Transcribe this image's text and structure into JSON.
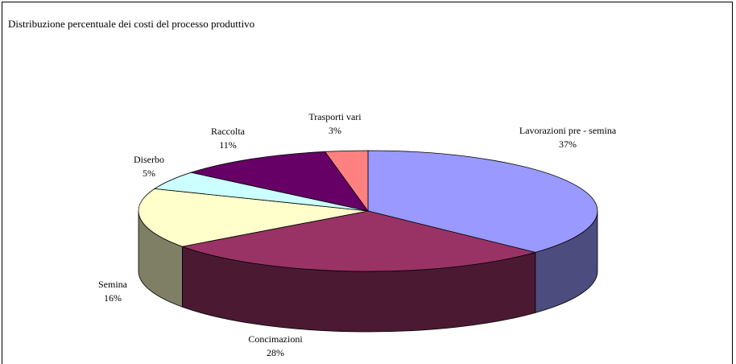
{
  "chart_data": {
    "type": "pie3d",
    "title": "Distribuzione percentuale dei costi  del processo produttivo",
    "categories": [
      "Lavorazioni pre - semina",
      "Concimazioni",
      "Semina",
      "Diserbo",
      "Raccolta",
      "Trasporti vari"
    ],
    "values": [
      37,
      28,
      16,
      5,
      11,
      3
    ],
    "value_labels": [
      "37%",
      "28%",
      "16%",
      "5%",
      "11%",
      "3%"
    ],
    "colors": [
      "#9999ff",
      "#993366",
      "#ffffcc",
      "#ccffff",
      "#660066",
      "#ff8080"
    ]
  }
}
